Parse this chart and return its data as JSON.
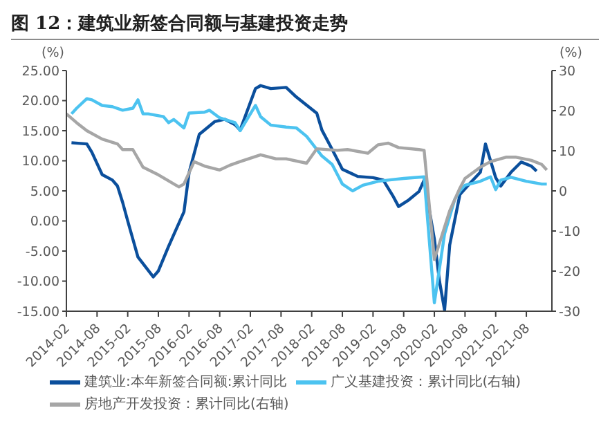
{
  "chart_data": {
    "type": "line",
    "title": "图 12：建筑业新签合同额与基建投资走势",
    "ylabel": "(%)",
    "y2label": "(%)",
    "xlim": [
      "2014-02",
      "2022-01"
    ],
    "xticks": [
      "2014-02",
      "2014-08",
      "2015-02",
      "2015-08",
      "2016-02",
      "2016-08",
      "2017-02",
      "2017-08",
      "2018-02",
      "2018-08",
      "2019-02",
      "2019-08",
      "2020-02",
      "2020-08",
      "2021-02",
      "2021-08"
    ],
    "ylim": [
      -15,
      25
    ],
    "yticks": [
      {
        "value": -15,
        "label": "-15.00"
      },
      {
        "value": -10,
        "label": "-10.00"
      },
      {
        "value": -5,
        "label": "-5.00"
      },
      {
        "value": 0,
        "label": "0.00"
      },
      {
        "value": 5,
        "label": "5.00"
      },
      {
        "value": 10,
        "label": "10.00"
      },
      {
        "value": 15,
        "label": "15.00"
      },
      {
        "value": 20,
        "label": "20.00"
      },
      {
        "value": 25,
        "label": "25.00"
      }
    ],
    "y2lim": [
      -30,
      30
    ],
    "y2ticks": [
      -30,
      -20,
      -10,
      0,
      10,
      20,
      30
    ],
    "grid": false,
    "legend": "bottom",
    "marker": "none",
    "line_style": "solid",
    "series": [
      {
        "name": "建筑业:本年新签合同额:累计同比",
        "color": "#0b4f9c",
        "x": [
          "2014-03",
          "2014-06",
          "2014-07",
          "2014-09",
          "2014-11",
          "2014-12",
          "2015-01",
          "2015-02",
          "2015-04",
          "2015-07",
          "2015-08",
          "2015-10",
          "2016-01",
          "2016-02",
          "2016-04",
          "2016-07",
          "2016-09",
          "2016-11",
          "2016-12",
          "2017-03",
          "2017-04",
          "2017-06",
          "2017-09",
          "2017-11",
          "2018-03",
          "2018-04",
          "2018-06",
          "2018-08",
          "2018-11",
          "2019-02",
          "2019-04",
          "2019-06",
          "2019-07",
          "2019-09",
          "2019-11",
          "2019-12",
          "2020-02",
          "2020-03",
          "2020-04",
          "2020-05",
          "2020-07",
          "2020-09",
          "2020-11",
          "2020-12",
          "2021-02",
          "2021-03",
          "2021-05",
          "2021-07",
          "2021-09",
          "2021-10"
        ],
        "values": [
          13.0,
          12.8,
          11.4,
          7.7,
          6.8,
          5.8,
          3.1,
          0,
          -6,
          -9.3,
          -8.3,
          -4.2,
          1.5,
          8,
          14.4,
          16.5,
          16.9,
          16,
          15.1,
          22,
          22.5,
          22,
          22.2,
          20.6,
          17.9,
          15.1,
          11.9,
          8.6,
          7.4,
          7.2,
          6.8,
          4,
          2.4,
          3.5,
          4.9,
          6.8,
          -3,
          -10,
          -14.8,
          -4,
          4.4,
          6.3,
          8.1,
          12.8,
          7.2,
          5.8,
          8.1,
          9.8,
          9.1,
          8.3
        ]
      },
      {
        "name": "广义基建投资：累计同比(右轴)",
        "color": "#4cc3f0",
        "axis": "y2",
        "x": [
          "2014-03",
          "2014-04",
          "2014-06",
          "2014-07",
          "2014-09",
          "2014-11",
          "2015-01",
          "2015-03",
          "2015-04",
          "2015-05",
          "2015-06",
          "2015-09",
          "2015-10",
          "2015-11",
          "2016-01",
          "2016-02",
          "2016-05",
          "2016-06",
          "2016-08",
          "2016-11",
          "2016-12",
          "2017-03",
          "2017-04",
          "2017-06",
          "2017-09",
          "2017-11",
          "2018-01",
          "2018-04",
          "2018-06",
          "2018-08",
          "2018-10",
          "2018-12",
          "2019-03",
          "2019-05",
          "2019-08",
          "2019-11",
          "2019-12",
          "2020-02",
          "2020-04",
          "2020-06",
          "2020-07",
          "2020-08",
          "2020-11",
          "2021-01",
          "2021-02",
          "2021-03",
          "2021-05",
          "2021-08",
          "2021-11",
          "2021-12"
        ],
        "values": [
          19.2,
          20.6,
          23,
          22.7,
          21.3,
          21,
          20.1,
          20.6,
          22.7,
          19.2,
          19.2,
          18.5,
          17,
          17.8,
          15.7,
          19.4,
          19.6,
          20.1,
          18.2,
          17,
          15,
          21.3,
          18.5,
          16.4,
          15.9,
          15.7,
          13.6,
          8.7,
          6.6,
          1.7,
          0,
          1.4,
          2.4,
          2.7,
          3.1,
          3.4,
          3.5,
          -27.9,
          -10.7,
          -2.1,
          0,
          1.4,
          2.4,
          3.5,
          0.3,
          2.7,
          3.4,
          2.4,
          1.7,
          1.7
        ]
      },
      {
        "name": "房地产开发投资：累计同比(右轴)",
        "color": "#a6a6a6",
        "axis": "y2",
        "x": [
          "2014-02",
          "2014-04",
          "2014-06",
          "2014-09",
          "2014-12",
          "2015-01",
          "2015-03",
          "2015-05",
          "2015-08",
          "2015-12",
          "2016-01",
          "2016-03",
          "2016-05",
          "2016-08",
          "2016-10",
          "2016-12",
          "2017-04",
          "2017-07",
          "2017-09",
          "2018-01",
          "2018-03",
          "2018-07",
          "2018-09",
          "2019-01",
          "2019-03",
          "2019-05",
          "2019-07",
          "2019-11",
          "2019-12",
          "2020-02",
          "2020-05",
          "2020-07",
          "2020-08",
          "2020-11",
          "2021-01",
          "2021-04",
          "2021-06",
          "2021-09",
          "2021-11",
          "2021-12"
        ],
        "values": [
          19.2,
          17,
          15,
          12.9,
          11.7,
          10.3,
          10.3,
          5.9,
          4,
          1,
          1.7,
          7.3,
          6.2,
          5.2,
          6.4,
          7.3,
          9,
          8,
          8,
          6.9,
          10.5,
          10.1,
          10.3,
          9.4,
          11.5,
          11.9,
          10.8,
          10.3,
          10.1,
          -17.1,
          -5,
          0.7,
          3.1,
          5.9,
          7.3,
          8.4,
          8.4,
          7.6,
          6.6,
          5.2
        ]
      }
    ]
  }
}
